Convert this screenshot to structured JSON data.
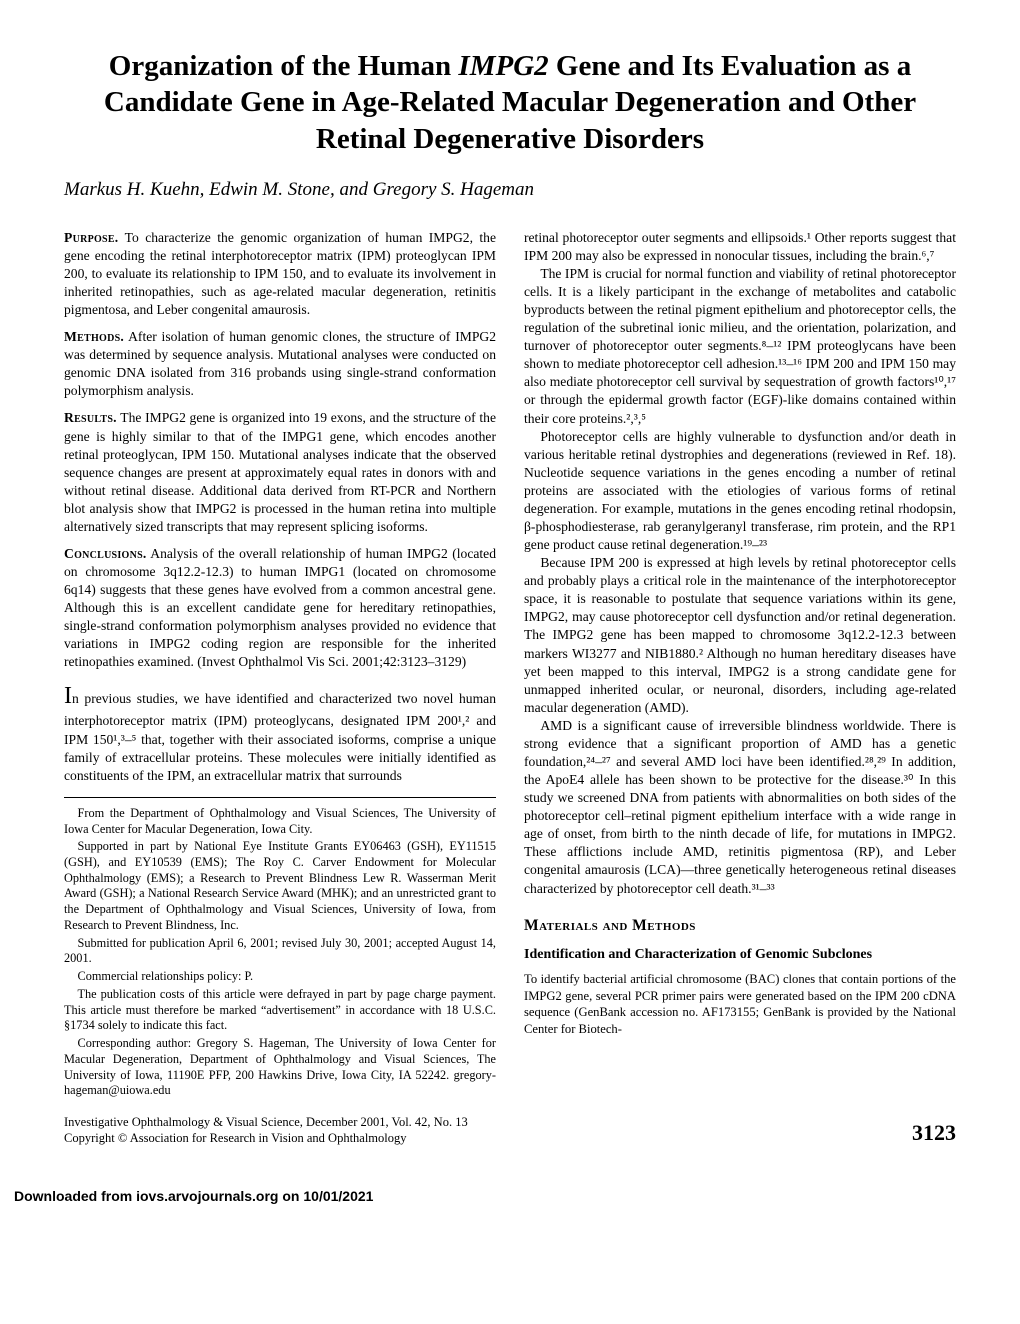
{
  "title": "Organization of the Human IMPG2 Gene and Its Evaluation as a Candidate Gene in Age-Related Macular Degeneration and Other Retinal Degenerative Disorders",
  "authors": "Markus H. Kuehn, Edwin M. Stone, and Gregory S. Hageman",
  "abstract": {
    "purpose": {
      "head": "Purpose.",
      "text": " To characterize the genomic organization of human IMPG2, the gene encoding the retinal interphotoreceptor matrix (IPM) proteoglycan IPM 200, to evaluate its relationship to IPM 150, and to evaluate its involvement in inherited retinopathies, such as age-related macular degeneration, retinitis pigmentosa, and Leber congenital amaurosis."
    },
    "methods": {
      "head": "Methods.",
      "text": " After isolation of human genomic clones, the structure of IMPG2 was determined by sequence analysis. Mutational analyses were conducted on genomic DNA isolated from 316 probands using single-strand conformation polymorphism analysis."
    },
    "results": {
      "head": "Results.",
      "text": " The IMPG2 gene is organized into 19 exons, and the structure of the gene is highly similar to that of the IMPG1 gene, which encodes another retinal proteoglycan, IPM 150. Mutational analyses indicate that the observed sequence changes are present at approximately equal rates in donors with and without retinal disease. Additional data derived from RT-PCR and Northern blot analysis show that IMPG2 is processed in the human retina into multiple alternatively sized transcripts that may represent splicing isoforms."
    },
    "conclusions": {
      "head": "Conclusions.",
      "text": " Analysis of the overall relationship of human IMPG2 (located on chromosome 3q12.2-12.3) to human IMPG1 (located on chromosome 6q14) suggests that these genes have evolved from a common ancestral gene. Although this is an excellent candidate gene for hereditary retinopathies, single-strand conformation polymorphism analyses provided no evidence that variations in IMPG2 coding region are responsible for the inherited retinopathies examined. (Invest Ophthalmol Vis Sci. 2001;42:3123–3129)"
    }
  },
  "introduction": [
    "In previous studies, we have identified and characterized two novel human interphotoreceptor matrix (IPM) proteoglycans, designated IPM 200¹,² and IPM 150¹,³–⁵ that, together with their associated isoforms, comprise a unique family of extracellular proteins. These molecules were initially identified as constituents of the IPM, an extracellular matrix that surrounds"
  ],
  "footnotes": [
    "From the Department of Ophthalmology and Visual Sciences, The University of Iowa Center for Macular Degeneration, Iowa City.",
    "Supported in part by National Eye Institute Grants EY06463 (GSH), EY11515 (GSH), and EY10539 (EMS); The Roy C. Carver Endowment for Molecular Ophthalmology (EMS); a Research to Prevent Blindness Lew R. Wasserman Merit Award (GSH); a National Research Service Award (MHK); and an unrestricted grant to the Department of Ophthalmology and Visual Sciences, University of Iowa, from Research to Prevent Blindness, Inc.",
    "Submitted for publication April 6, 2001; revised July 30, 2001; accepted August 14, 2001.",
    "Commercial relationships policy: P.",
    "The publication costs of this article were defrayed in part by page charge payment. This article must therefore be marked “advertisement” in accordance with 18 U.S.C. §1734 solely to indicate this fact.",
    "Corresponding author: Gregory S. Hageman, The University of Iowa Center for Macular Degeneration, Department of Ophthalmology and Visual Sciences, The University of Iowa, 11190E PFP, 200 Hawkins Drive, Iowa City, IA 52242. gregory-hageman@uiowa.edu"
  ],
  "rightcol": [
    "retinal photoreceptor outer segments and ellipsoids.¹ Other reports suggest that IPM 200 may also be expressed in nonocular tissues, including the brain.⁶,⁷",
    "The IPM is crucial for normal function and viability of retinal photoreceptor cells. It is a likely participant in the exchange of metabolites and catabolic byproducts between the retinal pigment epithelium and photoreceptor cells, the regulation of the subretinal ionic milieu, and the orientation, polarization, and turnover of photoreceptor outer segments.⁸–¹² IPM proteoglycans have been shown to mediate photoreceptor cell adhesion.¹³–¹⁶ IPM 200 and IPM 150 may also mediate photoreceptor cell survival by sequestration of growth factors¹⁰,¹⁷ or through the epidermal growth factor (EGF)-like domains contained within their core proteins.²,³,⁵",
    "Photoreceptor cells are highly vulnerable to dysfunction and/or death in various heritable retinal dystrophies and degenerations (reviewed in Ref. 18). Nucleotide sequence variations in the genes encoding a number of retinal proteins are associated with the etiologies of various forms of retinal degeneration. For example, mutations in the genes encoding retinal rhodopsin, β-phosphodiesterase, rab geranylgeranyl transferase, rim protein, and the RP1 gene product cause retinal degeneration.¹⁹–²³",
    "Because IPM 200 is expressed at high levels by retinal photoreceptor cells and probably plays a critical role in the maintenance of the interphotoreceptor space, it is reasonable to postulate that sequence variations within its gene, IMPG2, may cause photoreceptor cell dysfunction and/or retinal degeneration. The IMPG2 gene has been mapped to chromosome 3q12.2-12.3 between markers WI3277 and NIB1880.² Although no human hereditary diseases have yet been mapped to this interval, IMPG2 is a strong candidate gene for unmapped inherited ocular, or neuronal, disorders, including age-related macular degeneration (AMD).",
    "AMD is a significant cause of irreversible blindness worldwide. There is strong evidence that a significant proportion of AMD has a genetic foundation,²⁴–²⁷ and several AMD loci have been identified.²⁸,²⁹ In addition, the ApoE4 allele has been shown to be protective for the disease.³⁰ In this study we screened DNA from patients with abnormalities on both sides of the photoreceptor cell–retinal pigment epithelium interface with a wide range in age of onset, from birth to the ninth decade of life, for mutations in IMPG2. These afflictions include AMD, retinitis pigmentosa (RP), and Leber congenital amaurosis (LCA)—three genetically heterogeneous retinal diseases characterized by photoreceptor cell death.³¹–³³"
  ],
  "sections": {
    "materials": "Materials and Methods",
    "subhead1": "Identification and Characterization of Genomic Subclones",
    "subtext1": "To identify bacterial artificial chromosome (BAC) clones that contain portions of the IMPG2 gene, several PCR primer pairs were generated based on the IPM 200 cDNA sequence (GenBank accession no. AF173155; GenBank is provided by the National Center for Biotech-"
  },
  "footer": {
    "line1": "Investigative Ophthalmology & Visual Science, December 2001, Vol. 42, No. 13",
    "line2": "Copyright © Association for Research in Vision and Ophthalmology",
    "pagenum": "3123"
  },
  "download": "Downloaded from iovs.arvojournals.org on 10/01/2021"
}
